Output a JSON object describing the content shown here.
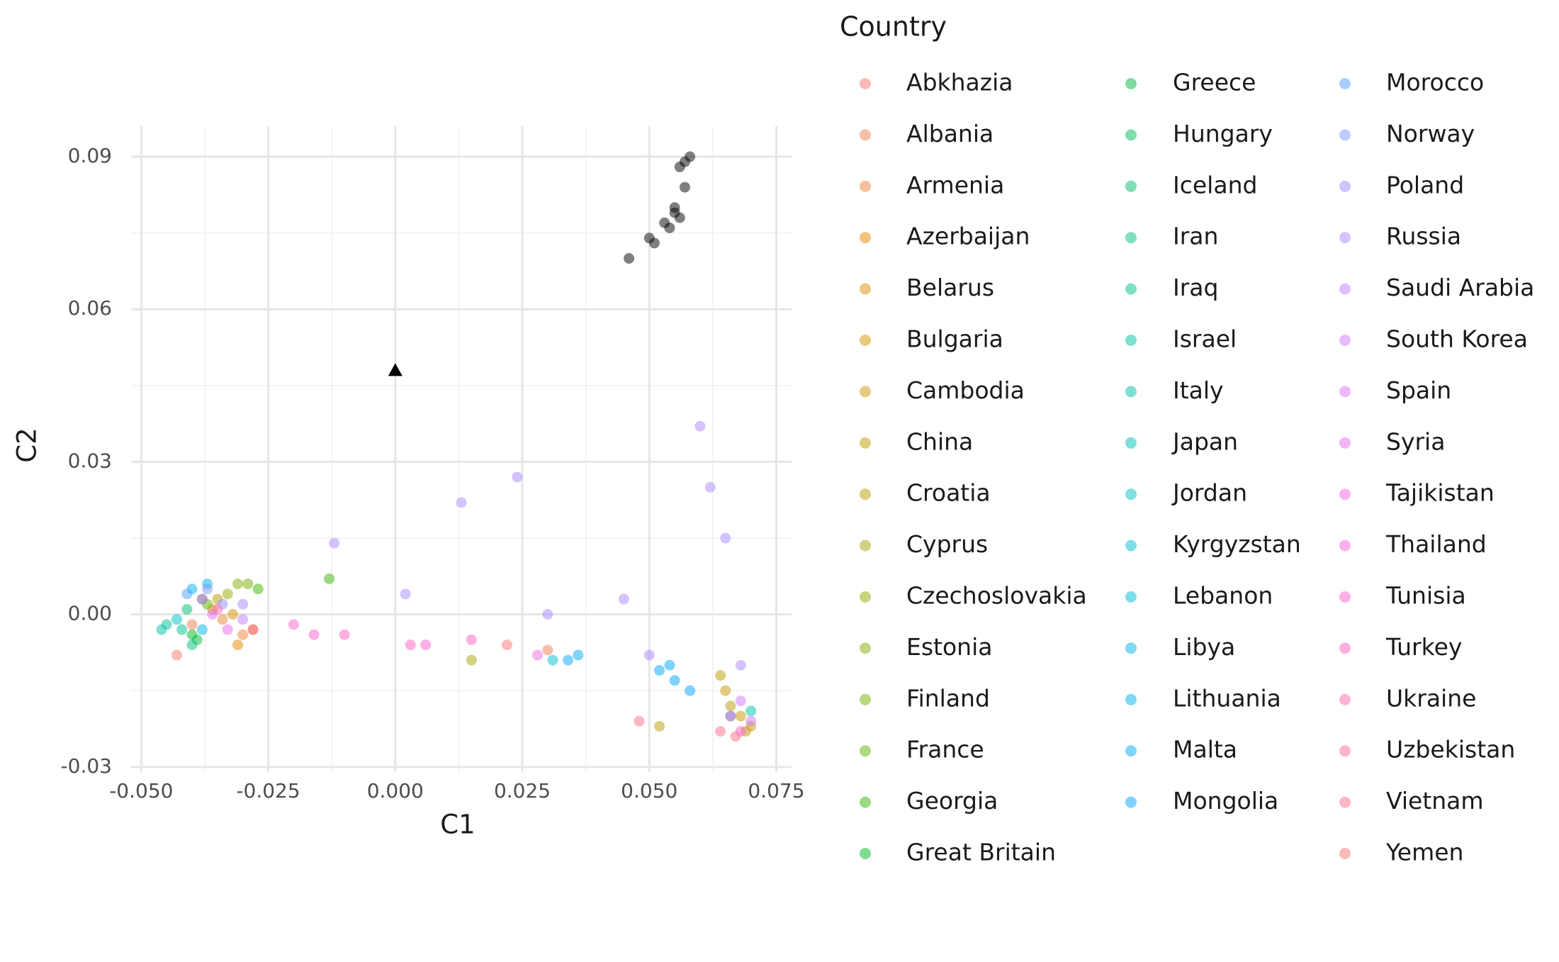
{
  "chart_data": {
    "type": "scatter",
    "x_label": "C1",
    "y_label": "C2",
    "legend_title": "Country",
    "xlim": [
      -0.052,
      0.078
    ],
    "ylim": [
      -0.031,
      0.096
    ],
    "xticks": [
      {
        "value": -0.05,
        "label": "-0.050"
      },
      -0.025,
      {
        "value": 0,
        "label": "0.000"
      },
      0.025,
      {
        "value": 0.05,
        "label": "0.050"
      },
      0.075
    ],
    "yticks": [
      -0.03,
      {
        "value": 0,
        "label": "0.00"
      },
      0.03,
      0.06,
      0.09
    ],
    "grid": true,
    "legend_position": "right",
    "point_opacity": 0.5,
    "series": [
      {
        "name": "Abkhazia",
        "color": "#F8766D",
        "x": [
          0.022
        ],
        "y": [
          -0.006
        ]
      },
      {
        "name": "Albania",
        "color": "#F27D52",
        "x": [
          -0.04,
          0.03
        ],
        "y": [
          -0.002,
          -0.007
        ]
      },
      {
        "name": "Armenia",
        "color": "#EB8335",
        "x": [
          -0.03,
          -0.034
        ],
        "y": [
          -0.004,
          -0.001
        ]
      },
      {
        "name": "Azerbaijan",
        "color": "#E58700",
        "x": [
          -0.031,
          -0.028
        ],
        "y": [
          -0.006,
          -0.003
        ]
      },
      {
        "name": "Belarus",
        "color": "#DD8D00",
        "x": [
          -0.036
        ],
        "y": [
          0.001
        ]
      },
      {
        "name": "Bulgaria",
        "color": "#D49200",
        "x": [
          -0.032
        ],
        "y": [
          0.0
        ]
      },
      {
        "name": "Cambodia",
        "color": "#C99800",
        "x": [
          0.065,
          0.068,
          0.07
        ],
        "y": [
          -0.015,
          -0.02,
          -0.022
        ]
      },
      {
        "name": "China",
        "color": "#BE9C00",
        "x": [
          0.064,
          0.066,
          0.069,
          0.052
        ],
        "y": [
          -0.012,
          -0.018,
          -0.023,
          -0.022
        ]
      },
      {
        "name": "Croatia",
        "color": "#B3A000",
        "x": [
          -0.035
        ],
        "y": [
          0.003
        ]
      },
      {
        "name": "Cyprus",
        "color": "#A5A400",
        "x": [
          0.015
        ],
        "y": [
          -0.009
        ]
      },
      {
        "name": "Czechoslovakia",
        "color": "#96A900",
        "x": [
          -0.033
        ],
        "y": [
          0.004
        ]
      },
      {
        "name": "Estonia",
        "color": "#86AC00",
        "x": [
          -0.031
        ],
        "y": [
          0.006
        ]
      },
      {
        "name": "Finland",
        "color": "#72B000",
        "x": [
          -0.029
        ],
        "y": [
          0.006
        ]
      },
      {
        "name": "France",
        "color": "#5BB300",
        "x": [
          -0.037
        ],
        "y": [
          0.002
        ]
      },
      {
        "name": "Georgia",
        "color": "#39B600",
        "x": [
          -0.027,
          -0.013
        ],
        "y": [
          0.005,
          0.007
        ]
      },
      {
        "name": "Great Britain",
        "color": "#00B81F",
        "x": [
          -0.04
        ],
        "y": [
          -0.004
        ]
      },
      {
        "name": "Greece",
        "color": "#00BA42",
        "x": [
          -0.039
        ],
        "y": [
          -0.005
        ]
      },
      {
        "name": "Hungary",
        "color": "#00BC59",
        "x": [
          -0.038
        ],
        "y": [
          0.003
        ]
      },
      {
        "name": "Iceland",
        "color": "#00BE6C",
        "x": [
          -0.041
        ],
        "y": [
          0.001
        ]
      },
      {
        "name": "Iran",
        "color": "#00BF7D",
        "x": [
          -0.04
        ],
        "y": [
          -0.006
        ]
      },
      {
        "name": "Iraq",
        "color": "#00C08D",
        "x": [
          -0.042
        ],
        "y": [
          -0.003
        ]
      },
      {
        "name": "Israel",
        "color": "#00C19C",
        "x": [
          -0.045
        ],
        "y": [
          -0.002
        ]
      },
      {
        "name": "Italy",
        "color": "#00C1AA",
        "x": [
          -0.046
        ],
        "y": [
          -0.003
        ]
      },
      {
        "name": "Japan",
        "color": "#00C0B8",
        "x": [
          0.066,
          0.07
        ],
        "y": [
          -0.02,
          -0.019
        ]
      },
      {
        "name": "Jordan",
        "color": "#00BFC4",
        "x": [
          -0.043
        ],
        "y": [
          -0.001
        ]
      },
      {
        "name": "Kyrgyzstan",
        "color": "#00BDD0",
        "x": [
          0.031
        ],
        "y": [
          -0.009
        ]
      },
      {
        "name": "Lebanon",
        "color": "#00BADB",
        "x": [
          -0.037
        ],
        "y": [
          0.006
        ]
      },
      {
        "name": "Libya",
        "color": "#00B6E5",
        "x": [
          -0.038
        ],
        "y": [
          -0.003
        ]
      },
      {
        "name": "Lithuania",
        "color": "#00B2EE",
        "x": [
          -0.04
        ],
        "y": [
          0.005
        ]
      },
      {
        "name": "Malta",
        "color": "#00ADF6",
        "x": [
          0.034,
          0.036
        ],
        "y": [
          -0.009,
          -0.008
        ]
      },
      {
        "name": "Mongolia",
        "color": "#00A5FF",
        "x": [
          0.052,
          0.055,
          0.058,
          0.054
        ],
        "y": [
          -0.011,
          -0.013,
          -0.015,
          -0.01
        ]
      },
      {
        "name": "Morocco",
        "color": "#529EFF",
        "x": [
          -0.041
        ],
        "y": [
          0.004
        ]
      },
      {
        "name": "Norway",
        "color": "#7997FF",
        "x": [
          -0.037
        ],
        "y": [
          0.005
        ]
      },
      {
        "name": "Poland",
        "color": "#9590FF",
        "x": [
          -0.034
        ],
        "y": [
          0.002
        ]
      },
      {
        "name": "Russia",
        "color": "#AC88FF",
        "x": [
          -0.03,
          -0.012,
          0.002,
          0.013,
          0.024,
          0.03,
          0.045,
          0.05,
          0.06,
          0.062,
          0.065,
          0.068
        ],
        "y": [
          0.002,
          0.014,
          0.004,
          0.022,
          0.027,
          0.0,
          0.003,
          -0.008,
          0.037,
          0.025,
          0.015,
          -0.01
        ]
      },
      {
        "name": "Saudi Arabia",
        "color": "#BF80FF",
        "x": [
          -0.03
        ],
        "y": [
          -0.001
        ]
      },
      {
        "name": "South Korea",
        "color": "#D078FF",
        "x": [
          0.068,
          0.07
        ],
        "y": [
          -0.017,
          -0.021
        ]
      },
      {
        "name": "Spain",
        "color": "#DE71F9",
        "x": [
          -0.036
        ],
        "y": [
          0.0
        ]
      },
      {
        "name": "Syria",
        "color": "#EA6AF1",
        "x": [
          -0.033
        ],
        "y": [
          -0.003
        ]
      },
      {
        "name": "Tajikistan",
        "color": "#F365E6",
        "x": [
          -0.038,
          0.028
        ],
        "y": [
          0.003,
          -0.008
        ]
      },
      {
        "name": "Thailand",
        "color": "#FA62DB",
        "x": [
          0.066,
          0.068
        ],
        "y": [
          -0.02,
          -0.023
        ]
      },
      {
        "name": "Tunisia",
        "color": "#FE61CF",
        "x": [
          -0.02,
          -0.016,
          0.006
        ],
        "y": [
          -0.002,
          -0.004,
          -0.006
        ]
      },
      {
        "name": "Turkey",
        "color": "#FF62BF",
        "x": [
          -0.01,
          0.003,
          0.015
        ],
        "y": [
          -0.004,
          -0.006,
          -0.005
        ]
      },
      {
        "name": "Ukraine",
        "color": "#FF65AF",
        "x": [
          -0.035
        ],
        "y": [
          0.001
        ]
      },
      {
        "name": "Uzbekistan",
        "color": "#FF699C",
        "x": [
          -0.028
        ],
        "y": [
          -0.003
        ]
      },
      {
        "name": "Vietnam",
        "color": "#FC6F88",
        "x": [
          0.048,
          0.064,
          0.067
        ],
        "y": [
          -0.021,
          -0.023,
          -0.024
        ]
      },
      {
        "name": "Yemen",
        "color": "#F8766D",
        "x": [
          -0.043
        ],
        "y": [
          -0.008
        ]
      },
      {
        "color": "#000000",
        "x": [
          0.046,
          0.05,
          0.051,
          0.053,
          0.054,
          0.055,
          0.056,
          0.057,
          0.057,
          0.058,
          0.056,
          0.055
        ],
        "y": [
          0.07,
          0.074,
          0.073,
          0.077,
          0.076,
          0.079,
          0.078,
          0.084,
          0.089,
          0.09,
          0.088,
          0.08
        ]
      },
      {
        "color": "#000000",
        "shape": "triangle",
        "x": [
          0
        ],
        "y": [
          0.048
        ]
      }
    ]
  }
}
